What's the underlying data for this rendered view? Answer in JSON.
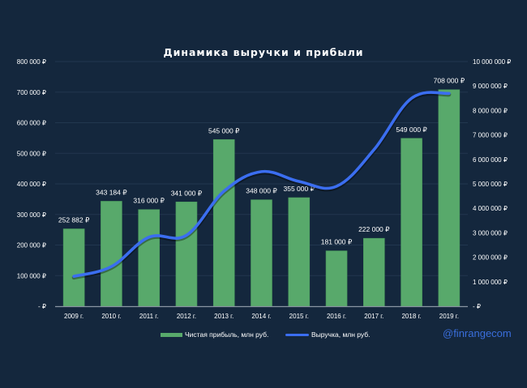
{
  "chart_data": {
    "type": "bar",
    "title": "Динамика выручки и прибыли",
    "categories": [
      "2009 г.",
      "2010 г.",
      "2011 г.",
      "2012 г.",
      "2013 г.",
      "2014 г.",
      "2015 г.",
      "2016 г.",
      "2017 г.",
      "2018 г.",
      "2019 г."
    ],
    "series": [
      {
        "name": "Чистая прибыль, млн руб.",
        "type": "bar",
        "axis": "left",
        "color": "#58a96b",
        "values": [
          252882,
          343184,
          316000,
          341000,
          545000,
          348000,
          355000,
          181000,
          222000,
          549000,
          708000
        ],
        "labels": [
          "252 882 ₽",
          "343 184 ₽",
          "316 000 ₽",
          "341 000 ₽",
          "545 000 ₽",
          "348 000 ₽",
          "355 000 ₽",
          "181 000 ₽",
          "222 000 ₽",
          "549 000 ₽",
          "708 000 ₽"
        ]
      },
      {
        "name": "Выручка, млн руб.",
        "type": "line",
        "axis": "right",
        "color": "#3b6ef0",
        "values": [
          1220000,
          1620000,
          2820000,
          2900000,
          4700000,
          5500000,
          5100000,
          4900000,
          6400000,
          8500000,
          8700000
        ]
      }
    ],
    "y_left": {
      "ylim": [
        0,
        800000
      ],
      "ticks": [
        0,
        100000,
        200000,
        300000,
        400000,
        500000,
        600000,
        700000,
        800000
      ],
      "tick_labels": [
        "-  ₽",
        "100 000 ₽",
        "200 000 ₽",
        "300 000 ₽",
        "400 000 ₽",
        "500 000 ₽",
        "600 000 ₽",
        "700 000 ₽",
        "800 000 ₽"
      ]
    },
    "y_right": {
      "ylim": [
        0,
        10000000
      ],
      "ticks": [
        0,
        1000000,
        2000000,
        3000000,
        4000000,
        5000000,
        6000000,
        7000000,
        8000000,
        9000000,
        10000000
      ],
      "tick_labels": [
        "-  ₽",
        "1 000 000 ₽",
        "2 000 000 ₽",
        "3 000 000 ₽",
        "4 000 000 ₽",
        "5 000 000 ₽",
        "6 000 000 ₽",
        "7 000 000 ₽",
        "8 000 000 ₽",
        "9 000 000 ₽",
        "10 000 000 ₽"
      ]
    },
    "grid": true,
    "legend": "bottom-center",
    "xlabel": "",
    "ylabel": ""
  },
  "watermark": "@finrangecom",
  "colors": {
    "background": "#14273d",
    "grid": "#22374f",
    "axis": "#8a96a3",
    "text": "#ffffff"
  }
}
